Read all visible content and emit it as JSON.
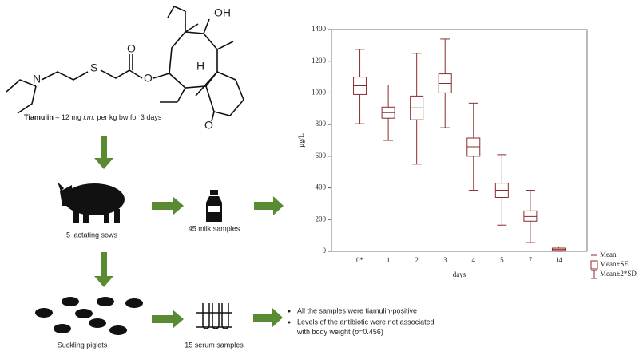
{
  "chart_data": {
    "type": "box",
    "y_label": "µg/L",
    "x_label": "days",
    "categories": [
      "0*",
      "1",
      "2",
      "3",
      "4",
      "5",
      "7",
      "14"
    ],
    "series": [
      {
        "name": "Mean",
        "color": "#8b2b2b",
        "values": [
          1045,
          875,
          905,
          1060,
          660,
          385,
          220,
          12
        ]
      },
      {
        "name": "Mean±SE",
        "color": "#8b2b2b",
        "low": [
          990,
          840,
          830,
          1000,
          600,
          340,
          190,
          5
        ],
        "high": [
          1100,
          910,
          980,
          1120,
          715,
          430,
          255,
          20
        ]
      },
      {
        "name": "Mean±2*SD",
        "color": "#8b2b2b",
        "low": [
          805,
          700,
          550,
          780,
          385,
          165,
          55,
          0
        ],
        "high": [
          1275,
          1050,
          1250,
          1340,
          935,
          610,
          385,
          28
        ]
      }
    ],
    "ylim": [
      0,
      1400
    ],
    "yticks": [
      0,
      200,
      400,
      600,
      800,
      1000,
      1200,
      1400
    ],
    "legend": "bottom-right"
  },
  "molecule": {
    "atoms": [
      "OH",
      "H",
      "O",
      "O",
      "O",
      "N",
      "S"
    ]
  },
  "caption": {
    "name": "Tiamulin",
    "dose": " – 12 mg ",
    "route": "i.m.",
    "rest": " per kg bw for 3 days"
  },
  "labels": {
    "sows": "5 lactating sows",
    "milk": "45 milk samples",
    "piglets": "Suckling piglets",
    "serum": "15 serum samples"
  },
  "findings": {
    "first": "All the samples were tiamulin-positive",
    "second_a": "Levels of the antibiotic were not associated",
    "second_b": "with body weight (",
    "p": "p",
    "p_value": "=0.456)"
  }
}
